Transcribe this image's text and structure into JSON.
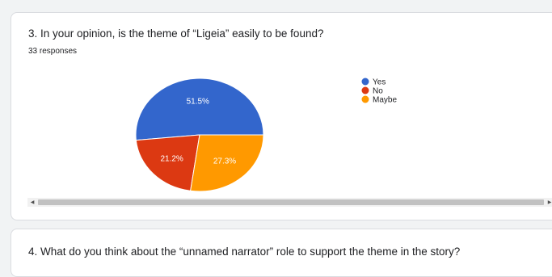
{
  "question3": {
    "title": "3. In your opinion, is the theme of “Ligeia” easily to be found?",
    "responses": "33 responses"
  },
  "question4": {
    "title": "4. What do you think about the “unnamed narrator” role to support the theme in the story?"
  },
  "scrollbar": {
    "left_arrow_icon": "triangle-left-icon",
    "right_arrow_icon": "triangle-right-icon"
  },
  "chart_data": {
    "type": "pie",
    "title": "",
    "categories": [
      "Yes",
      "No",
      "Maybe"
    ],
    "values": [
      51.5,
      21.2,
      27.3
    ],
    "labels": [
      "51.5%",
      "21.2%",
      "27.3%"
    ],
    "colors": [
      "#3366cc",
      "#dc3912",
      "#ff9900"
    ],
    "legend_position": "right",
    "start_angle_deg": 90
  }
}
